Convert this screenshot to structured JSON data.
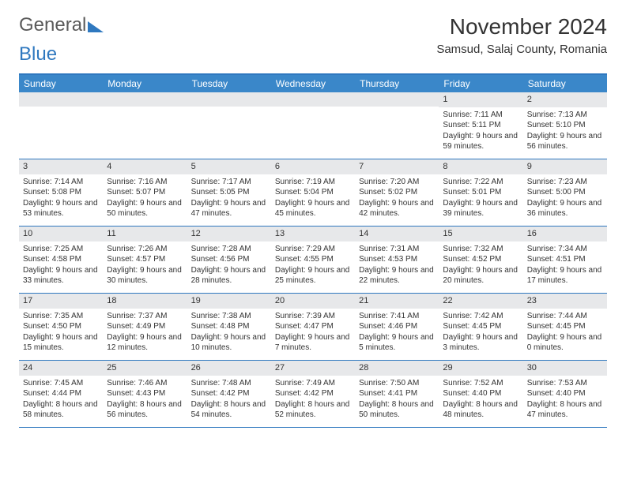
{
  "logo": {
    "word1": "General",
    "word2": "Blue"
  },
  "title": "November 2024",
  "location": "Samsud, Salaj County, Romania",
  "weekdays": [
    "Sunday",
    "Monday",
    "Tuesday",
    "Wednesday",
    "Thursday",
    "Friday",
    "Saturday"
  ],
  "colors": {
    "header_bar": "#3a87c9",
    "rule": "#2f78bf",
    "daynum_bg": "#e7e8ea",
    "text": "#333333",
    "logo_gray": "#5a5a5a",
    "logo_blue": "#2f78bf",
    "background": "#ffffff"
  },
  "typography": {
    "month_title_pt": 28,
    "location_pt": 15,
    "weekday_pt": 12,
    "daynum_pt": 11,
    "body_pt": 10
  },
  "layout": {
    "columns": 7,
    "rows": 5
  },
  "weeks": [
    [
      null,
      null,
      null,
      null,
      null,
      {
        "n": "1",
        "sr": "7:11 AM",
        "ss": "5:11 PM",
        "dl": "9 hours and 59 minutes."
      },
      {
        "n": "2",
        "sr": "7:13 AM",
        "ss": "5:10 PM",
        "dl": "9 hours and 56 minutes."
      }
    ],
    [
      {
        "n": "3",
        "sr": "7:14 AM",
        "ss": "5:08 PM",
        "dl": "9 hours and 53 minutes."
      },
      {
        "n": "4",
        "sr": "7:16 AM",
        "ss": "5:07 PM",
        "dl": "9 hours and 50 minutes."
      },
      {
        "n": "5",
        "sr": "7:17 AM",
        "ss": "5:05 PM",
        "dl": "9 hours and 47 minutes."
      },
      {
        "n": "6",
        "sr": "7:19 AM",
        "ss": "5:04 PM",
        "dl": "9 hours and 45 minutes."
      },
      {
        "n": "7",
        "sr": "7:20 AM",
        "ss": "5:02 PM",
        "dl": "9 hours and 42 minutes."
      },
      {
        "n": "8",
        "sr": "7:22 AM",
        "ss": "5:01 PM",
        "dl": "9 hours and 39 minutes."
      },
      {
        "n": "9",
        "sr": "7:23 AM",
        "ss": "5:00 PM",
        "dl": "9 hours and 36 minutes."
      }
    ],
    [
      {
        "n": "10",
        "sr": "7:25 AM",
        "ss": "4:58 PM",
        "dl": "9 hours and 33 minutes."
      },
      {
        "n": "11",
        "sr": "7:26 AM",
        "ss": "4:57 PM",
        "dl": "9 hours and 30 minutes."
      },
      {
        "n": "12",
        "sr": "7:28 AM",
        "ss": "4:56 PM",
        "dl": "9 hours and 28 minutes."
      },
      {
        "n": "13",
        "sr": "7:29 AM",
        "ss": "4:55 PM",
        "dl": "9 hours and 25 minutes."
      },
      {
        "n": "14",
        "sr": "7:31 AM",
        "ss": "4:53 PM",
        "dl": "9 hours and 22 minutes."
      },
      {
        "n": "15",
        "sr": "7:32 AM",
        "ss": "4:52 PM",
        "dl": "9 hours and 20 minutes."
      },
      {
        "n": "16",
        "sr": "7:34 AM",
        "ss": "4:51 PM",
        "dl": "9 hours and 17 minutes."
      }
    ],
    [
      {
        "n": "17",
        "sr": "7:35 AM",
        "ss": "4:50 PM",
        "dl": "9 hours and 15 minutes."
      },
      {
        "n": "18",
        "sr": "7:37 AM",
        "ss": "4:49 PM",
        "dl": "9 hours and 12 minutes."
      },
      {
        "n": "19",
        "sr": "7:38 AM",
        "ss": "4:48 PM",
        "dl": "9 hours and 10 minutes."
      },
      {
        "n": "20",
        "sr": "7:39 AM",
        "ss": "4:47 PM",
        "dl": "9 hours and 7 minutes."
      },
      {
        "n": "21",
        "sr": "7:41 AM",
        "ss": "4:46 PM",
        "dl": "9 hours and 5 minutes."
      },
      {
        "n": "22",
        "sr": "7:42 AM",
        "ss": "4:45 PM",
        "dl": "9 hours and 3 minutes."
      },
      {
        "n": "23",
        "sr": "7:44 AM",
        "ss": "4:45 PM",
        "dl": "9 hours and 0 minutes."
      }
    ],
    [
      {
        "n": "24",
        "sr": "7:45 AM",
        "ss": "4:44 PM",
        "dl": "8 hours and 58 minutes."
      },
      {
        "n": "25",
        "sr": "7:46 AM",
        "ss": "4:43 PM",
        "dl": "8 hours and 56 minutes."
      },
      {
        "n": "26",
        "sr": "7:48 AM",
        "ss": "4:42 PM",
        "dl": "8 hours and 54 minutes."
      },
      {
        "n": "27",
        "sr": "7:49 AM",
        "ss": "4:42 PM",
        "dl": "8 hours and 52 minutes."
      },
      {
        "n": "28",
        "sr": "7:50 AM",
        "ss": "4:41 PM",
        "dl": "8 hours and 50 minutes."
      },
      {
        "n": "29",
        "sr": "7:52 AM",
        "ss": "4:40 PM",
        "dl": "8 hours and 48 minutes."
      },
      {
        "n": "30",
        "sr": "7:53 AM",
        "ss": "4:40 PM",
        "dl": "8 hours and 47 minutes."
      }
    ]
  ],
  "labels": {
    "sunrise": "Sunrise:",
    "sunset": "Sunset:",
    "daylight": "Daylight:"
  }
}
